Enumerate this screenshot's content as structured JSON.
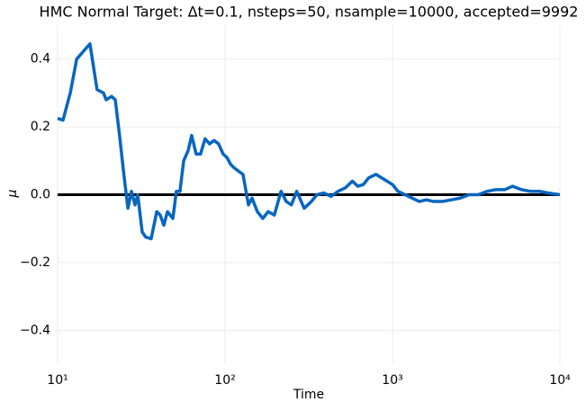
{
  "chart_data": {
    "type": "line",
    "title": "HMC Normal Target: Δt=0.1, nsteps=50, nsample=10000, accepted=9992",
    "xlabel": "Time",
    "ylabel": "μ",
    "xscale": "log",
    "grid": true,
    "xlim": [
      10,
      10000
    ],
    "xticks": [
      {
        "value": 10,
        "label": "10¹"
      },
      {
        "value": 100,
        "label": "10²"
      },
      {
        "value": 1000,
        "label": "10³"
      },
      {
        "value": 10000,
        "label": "10⁴"
      }
    ],
    "ylim": [
      -0.5,
      0.5
    ],
    "yticks": [
      {
        "value": -0.4,
        "label": "−0.4"
      },
      {
        "value": -0.2,
        "label": "−0.2"
      },
      {
        "value": 0,
        "label": "0.0"
      },
      {
        "value": 0.2,
        "label": "0.2"
      },
      {
        "value": 0.4,
        "label": "0.4"
      }
    ],
    "reference_line": {
      "y": 0,
      "color": "#000000"
    },
    "x": [
      10,
      10.77,
      11.9,
      13.0,
      14.1,
      15.6,
      17.2,
      18.8,
      19.5,
      21.0,
      22.1,
      23.5,
      25.0,
      26.3,
      27.6,
      29.0,
      30.1,
      32.0,
      33.6,
      36.2,
      39.1,
      41.0,
      43.1,
      45.3,
      48.8,
      51.2,
      53.8,
      56.6,
      60.2,
      63.2,
      67.2,
      71.4,
      76.0,
      80.8,
      86.0,
      91.5,
      97.4,
      102.6,
      107.8,
      113,
      120,
      128,
      138,
      145,
      156,
      168,
      181,
      197,
      216,
      232,
      249,
      268,
      297,
      328,
      354,
      389,
      430,
      473,
      522,
      576,
      621,
      670,
      722,
      797,
      859,
      927,
      1000,
      1078,
      1189,
      1311,
      1446,
      1595,
      1758,
      1987,
      2248,
      2542,
      2874,
      3250,
      3674,
      4155,
      4698,
      5210,
      5892,
      6662,
      7533,
      8518,
      10000
    ],
    "series": [
      {
        "name": "μ",
        "color": "#0866c0",
        "values": [
          0.225,
          0.22,
          0.3,
          0.4,
          0.42,
          0.445,
          0.31,
          0.3,
          0.28,
          0.29,
          0.28,
          0.17,
          0.05,
          -0.04,
          0.01,
          -0.03,
          0.0,
          -0.11,
          -0.125,
          -0.13,
          -0.05,
          -0.06,
          -0.09,
          -0.05,
          -0.07,
          0.01,
          0.01,
          0.1,
          0.13,
          0.175,
          0.12,
          0.12,
          0.165,
          0.15,
          0.16,
          0.15,
          0.12,
          0.11,
          0.09,
          0.08,
          0.07,
          0.06,
          -0.03,
          -0.01,
          -0.05,
          -0.07,
          -0.05,
          -0.06,
          0.01,
          -0.02,
          -0.03,
          0.01,
          -0.04,
          -0.02,
          0.0,
          0.005,
          -0.005,
          0.01,
          0.02,
          0.04,
          0.025,
          0.03,
          0.05,
          0.06,
          0.05,
          0.04,
          0.03,
          0.01,
          0.0,
          -0.01,
          -0.02,
          -0.015,
          -0.02,
          -0.02,
          -0.015,
          -0.01,
          0.0,
          0.0,
          0.01,
          0.015,
          0.015,
          0.025,
          0.015,
          0.01,
          0.01,
          0.005,
          0.0
        ]
      }
    ]
  }
}
